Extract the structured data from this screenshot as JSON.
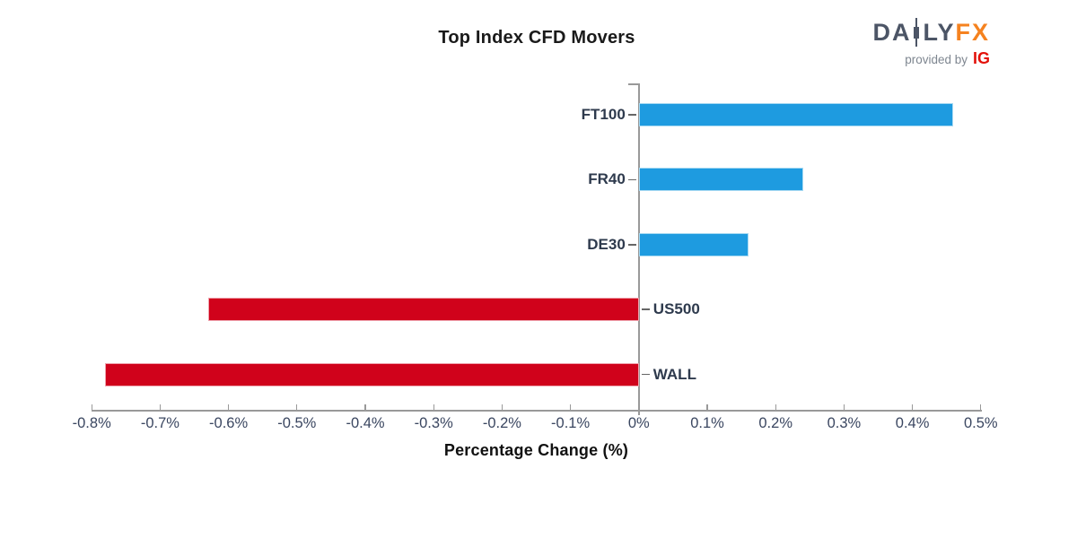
{
  "header": {
    "title": "Top Index CFD Movers"
  },
  "logo": {
    "daily_left": "DA",
    "daily_right": "LY",
    "fx": "FX",
    "provided_by": "provided by",
    "ig": "IG",
    "daily_color": "#4C5566",
    "fx_color": "#F5821F",
    "provided_by_color": "#7E8690",
    "ig_color": "#E3120B"
  },
  "chart_data": {
    "type": "bar",
    "orientation": "horizontal",
    "title": "Top Index CFD Movers",
    "xlabel": "Percentage Change (%)",
    "categories": [
      "FT100",
      "FR40",
      "DE30",
      "US500",
      "WALL"
    ],
    "values": [
      0.46,
      0.24,
      0.16,
      -0.63,
      -0.78
    ],
    "x_tick_labels": [
      "-0.8%",
      "-0.7%",
      "-0.6%",
      "-0.5%",
      "-0.4%",
      "-0.3%",
      "-0.2%",
      "-0.1%",
      "0%",
      "0.1%",
      "0.2%",
      "0.3%",
      "0.4%",
      "0.5%"
    ],
    "xlim": [
      -0.8,
      0.5
    ],
    "grid": false,
    "legend": "none",
    "positive_color": "#1E9BE0",
    "positive_edge_color": "#A6D9F2",
    "negative_color": "#D0021B",
    "negative_edge_color": "#EFA3AE",
    "axis_color": "#999999",
    "category_label_color": "#2E3A4D",
    "tick_label_color": "#3A4660"
  }
}
